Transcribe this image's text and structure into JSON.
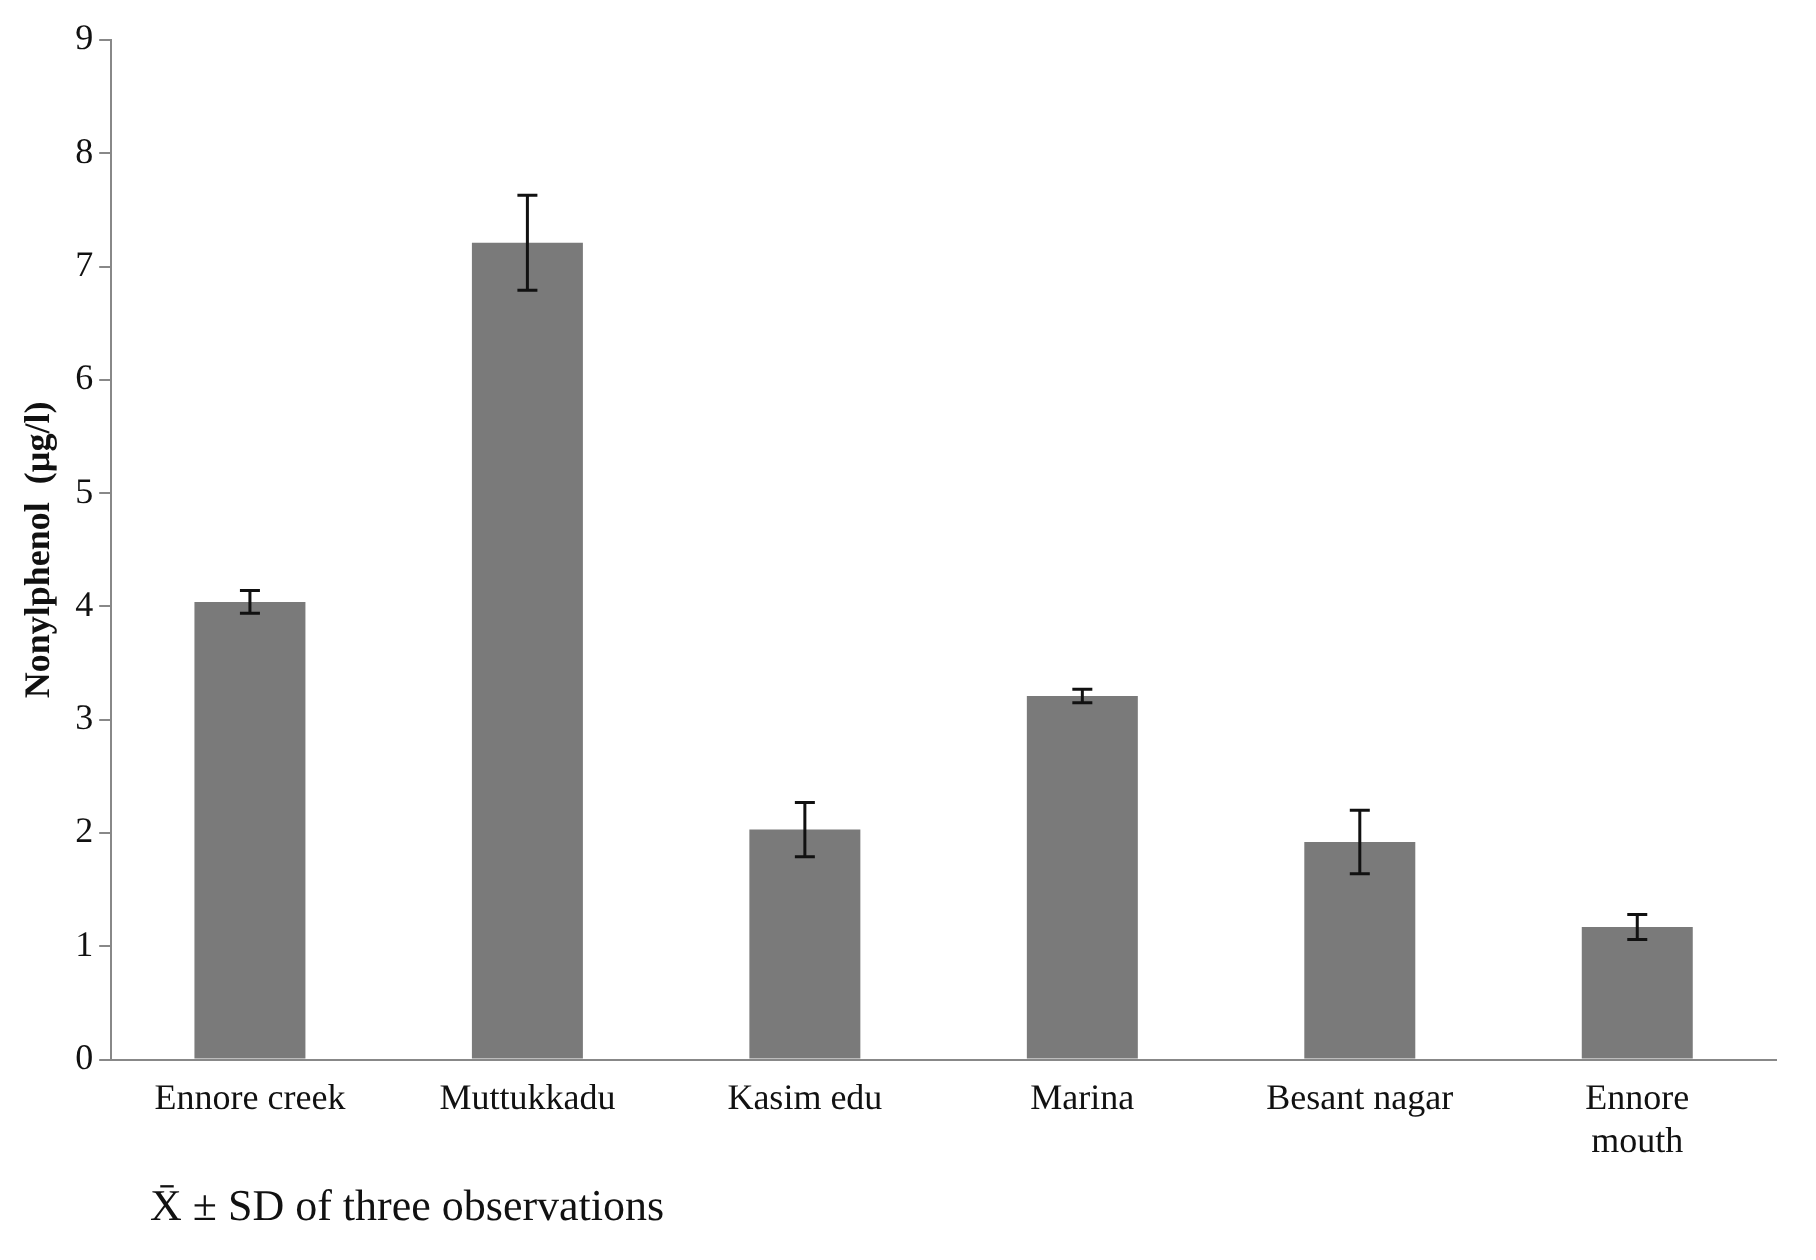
{
  "chart_data": {
    "type": "bar",
    "ylabel": "Nonylphenol  (µg/l)",
    "categories": [
      "Ennore creek",
      "Muttukkadu",
      "Kasim edu",
      "Marina",
      "Besant nagar",
      "Ennore mouth"
    ],
    "values": [
      4.04,
      7.21,
      2.03,
      3.21,
      1.92,
      1.17
    ],
    "errors": [
      0.1,
      0.42,
      0.24,
      0.06,
      0.28,
      0.11
    ],
    "color": "#7a7a7a",
    "ylim": [
      0,
      9
    ],
    "yticks": [
      0,
      1,
      2,
      3,
      4,
      5,
      6,
      7,
      8,
      9
    ],
    "grid": false,
    "legend": false,
    "annotations": [
      "X̄ ± SD of three observations"
    ]
  }
}
